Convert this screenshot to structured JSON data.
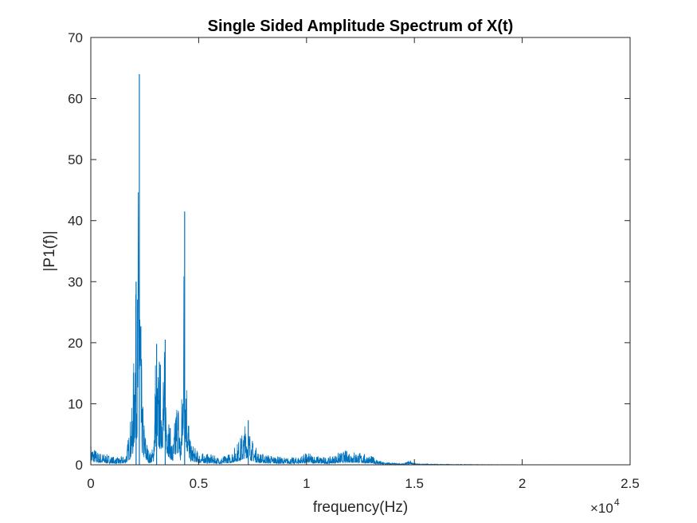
{
  "chart_data": {
    "type": "line",
    "title": "Single Sided Amplitude Spectrum of X(t)",
    "xlabel": "frequency(Hz)",
    "ylabel": "|P1(f)|",
    "x_exponent_label": "×10",
    "x_exponent_power": "4",
    "x_scale": 10000,
    "xlim": [
      0,
      25000
    ],
    "ylim": [
      0,
      70
    ],
    "xticks": [
      0,
      5000,
      10000,
      15000,
      20000,
      25000
    ],
    "xtick_labels": [
      "0",
      "0.5",
      "1",
      "1.5",
      "2",
      "2.5"
    ],
    "yticks": [
      0,
      10,
      20,
      30,
      40,
      50,
      60,
      70
    ],
    "ytick_labels": [
      "0",
      "10",
      "20",
      "30",
      "40",
      "50",
      "60",
      "70"
    ],
    "grid": false,
    "line_color": "#0072BD",
    "series": [
      {
        "x": [
          0,
          300,
          700,
          1200,
          1600,
          1800,
          1950,
          2050,
          2150,
          2200,
          2230,
          2260,
          2300,
          2380,
          2500,
          2700,
          2900,
          3000,
          3050,
          3150,
          3250,
          3400,
          3600,
          3800,
          4000,
          4100,
          4150,
          4250,
          4300,
          4350,
          4450,
          4600,
          5000,
          5500,
          6000,
          6500,
          7000,
          7200,
          7300,
          7500,
          7800,
          8500,
          9000,
          9500,
          10000,
          10500,
          11000,
          11500,
          12000,
          12500,
          13000,
          13500,
          14000,
          14500,
          14800,
          15000,
          16000,
          18000,
          20000,
          22000
        ],
        "y": [
          3.5,
          2.2,
          1.8,
          1.2,
          1.5,
          6,
          12,
          30,
          28,
          47,
          64,
          47,
          30,
          12,
          6,
          2,
          3,
          20,
          14,
          18,
          17,
          20,
          9,
          3,
          13,
          10,
          3,
          16,
          41.5,
          32,
          15,
          4,
          2,
          1.8,
          1.2,
          2,
          5,
          7.3,
          6.5,
          4,
          2,
          1.5,
          1.2,
          1.2,
          2,
          1.5,
          1.2,
          2,
          2.5,
          2,
          1.5,
          0.5,
          0.3,
          0.2,
          0.8,
          0.2,
          0.1,
          0.05,
          0.02,
          0.02
        ],
        "peaks": [
          {
            "x": 2250,
            "y": 64
          },
          {
            "x": 4350,
            "y": 41.5
          },
          {
            "x": 2100,
            "y": 30
          },
          {
            "x": 3450,
            "y": 20.5
          },
          {
            "x": 3050,
            "y": 19.8
          },
          {
            "x": 7300,
            "y": 7.3
          }
        ]
      }
    ]
  }
}
